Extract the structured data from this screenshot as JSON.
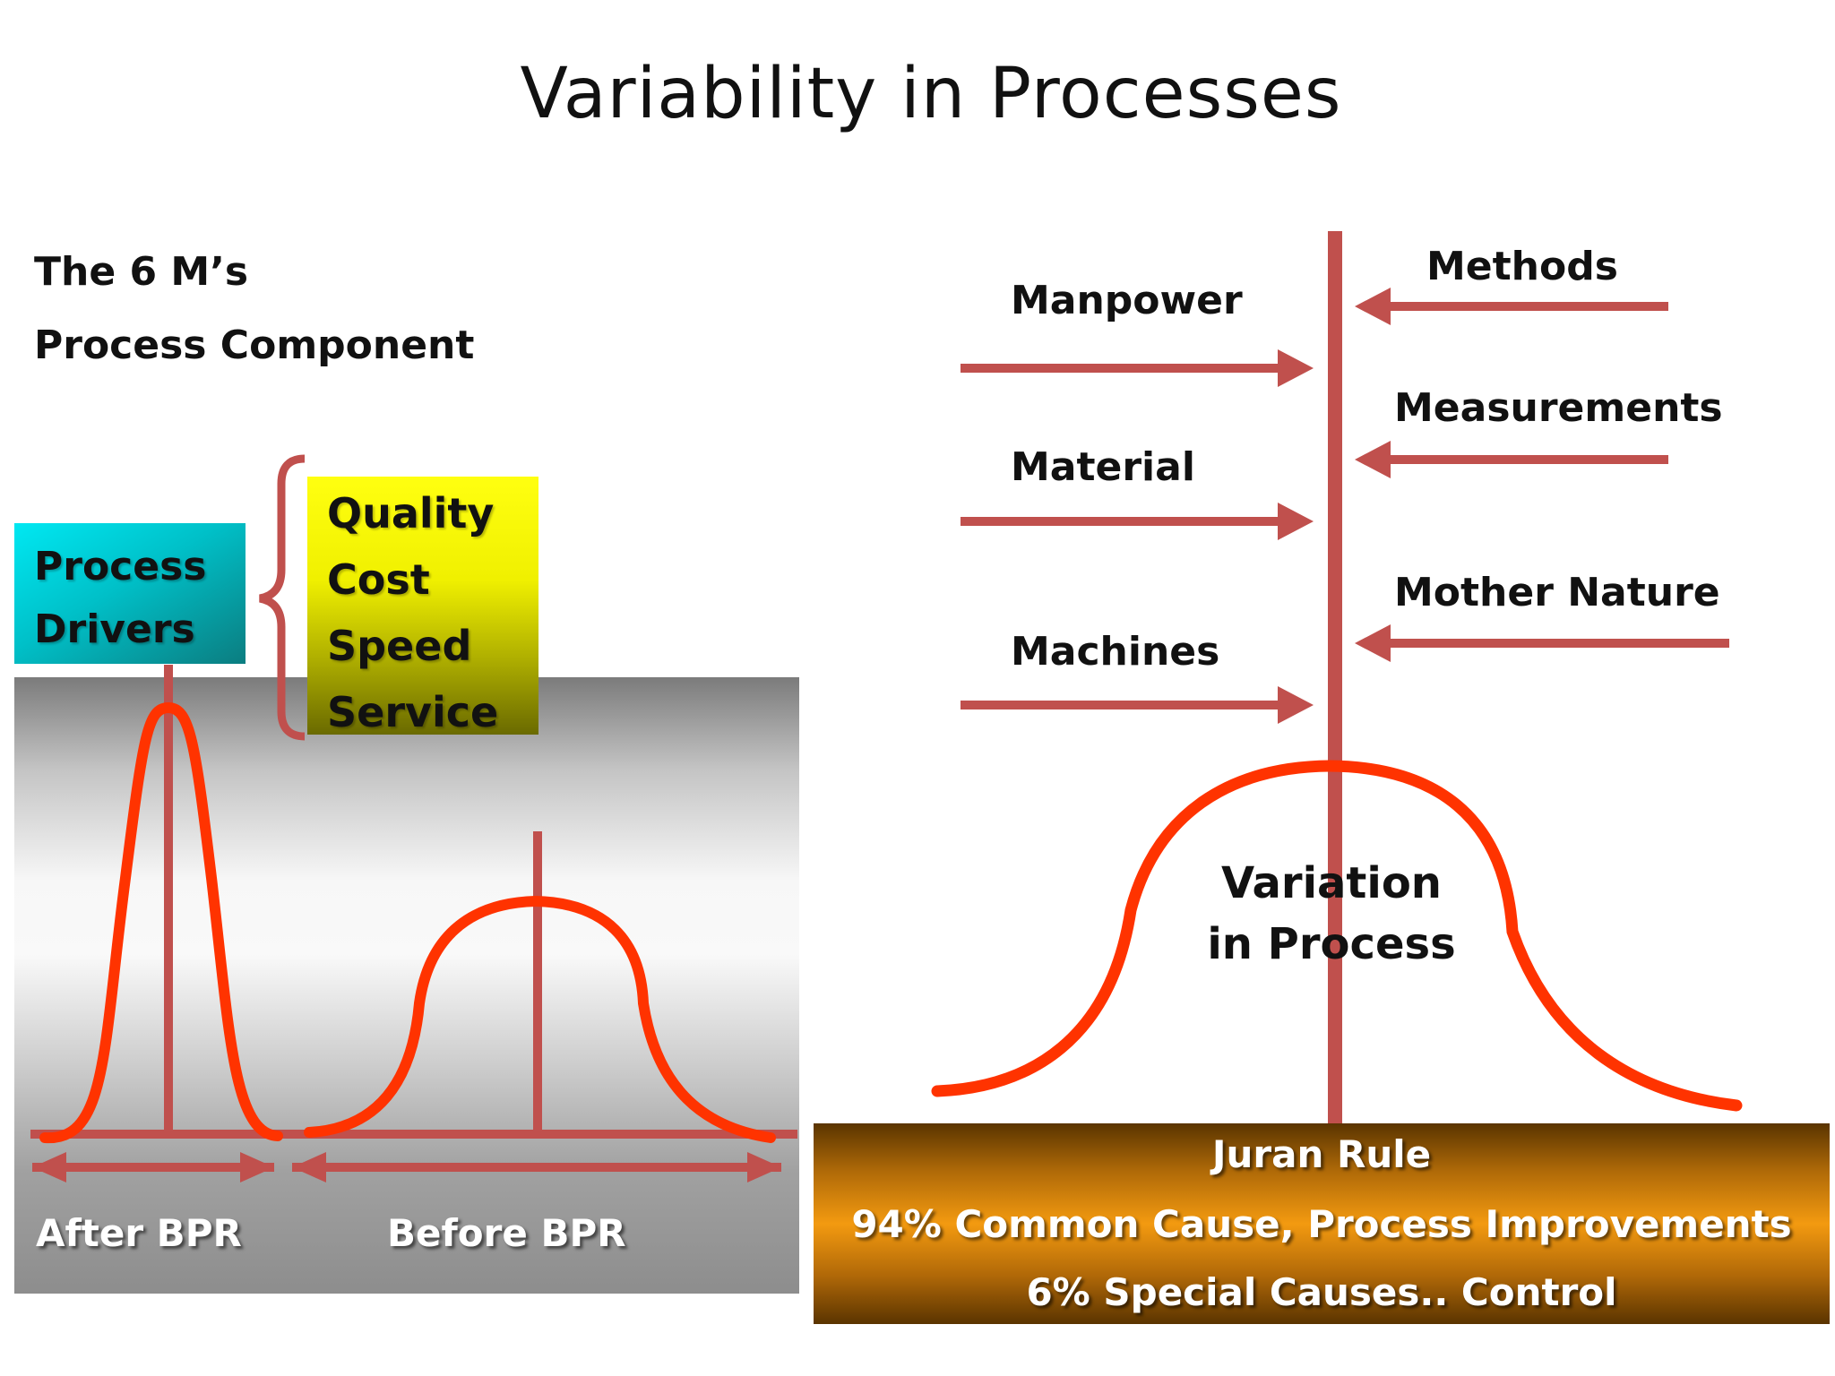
{
  "title": "Variability in Processes",
  "left": {
    "heading1": "The 6 M’s",
    "heading2": "Process Component",
    "drivers": [
      "Process",
      "Drivers"
    ],
    "outcomes": [
      "Quality",
      "Cost",
      "Speed",
      "Service"
    ],
    "after_label": "After BPR",
    "before_label": "Before BPR"
  },
  "right": {
    "inputs_left": [
      "Manpower",
      "Material",
      "Machines"
    ],
    "inputs_right": [
      "Methods",
      "Measurements",
      "Mother Nature"
    ],
    "variation": [
      "Variation",
      "in Process"
    ]
  },
  "juran": {
    "title": "Juran Rule",
    "line1": "94% Common Cause, Process Improvements",
    "line2": "6% Special Causes.. Control"
  },
  "colors": {
    "curve": "#ff3300",
    "axis": "#c0504d",
    "drivers_box": "#00c0c8",
    "outcomes_box": "#f0f000",
    "juran_box": "#f39a10"
  }
}
